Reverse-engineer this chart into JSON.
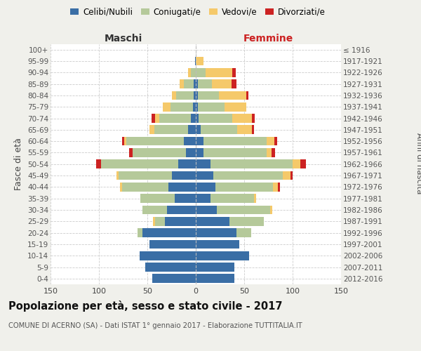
{
  "age_groups": [
    "0-4",
    "5-9",
    "10-14",
    "15-19",
    "20-24",
    "25-29",
    "30-34",
    "35-39",
    "40-44",
    "45-49",
    "50-54",
    "55-59",
    "60-64",
    "65-69",
    "70-74",
    "75-79",
    "80-84",
    "85-89",
    "90-94",
    "95-99",
    "100+"
  ],
  "birth_years": [
    "2012-2016",
    "2007-2011",
    "2002-2006",
    "1997-2001",
    "1992-1996",
    "1987-1991",
    "1982-1986",
    "1977-1981",
    "1972-1976",
    "1967-1971",
    "1962-1966",
    "1957-1961",
    "1952-1956",
    "1947-1951",
    "1942-1946",
    "1937-1941",
    "1932-1936",
    "1927-1931",
    "1922-1926",
    "1917-1921",
    "≤ 1916"
  ],
  "maschi": {
    "celibi": [
      45,
      52,
      58,
      48,
      55,
      32,
      30,
      22,
      28,
      25,
      18,
      10,
      12,
      8,
      5,
      3,
      2,
      2,
      0,
      1,
      0
    ],
    "coniugati": [
      0,
      0,
      0,
      0,
      5,
      10,
      25,
      35,
      48,
      55,
      80,
      55,
      60,
      35,
      33,
      23,
      18,
      10,
      5,
      0,
      0
    ],
    "vedovi": [
      0,
      0,
      0,
      0,
      0,
      2,
      0,
      0,
      2,
      2,
      0,
      0,
      2,
      5,
      4,
      8,
      5,
      5,
      3,
      0,
      0
    ],
    "divorziati": [
      0,
      0,
      0,
      0,
      0,
      0,
      0,
      0,
      0,
      0,
      5,
      4,
      2,
      0,
      4,
      0,
      0,
      0,
      0,
      0,
      0
    ]
  },
  "femmine": {
    "nubili": [
      40,
      40,
      55,
      45,
      42,
      35,
      22,
      15,
      20,
      18,
      15,
      8,
      8,
      5,
      3,
      2,
      2,
      2,
      0,
      0,
      0
    ],
    "coniugate": [
      0,
      0,
      0,
      0,
      15,
      35,
      55,
      45,
      60,
      72,
      85,
      65,
      65,
      38,
      35,
      28,
      22,
      15,
      10,
      0,
      0
    ],
    "vedove": [
      0,
      0,
      0,
      0,
      0,
      0,
      2,
      2,
      5,
      8,
      8,
      5,
      8,
      15,
      20,
      22,
      28,
      20,
      28,
      8,
      0
    ],
    "divorziate": [
      0,
      0,
      0,
      0,
      0,
      0,
      0,
      0,
      2,
      2,
      6,
      4,
      3,
      2,
      3,
      0,
      2,
      5,
      3,
      0,
      0
    ]
  },
  "colors": {
    "celibi": "#3a6ea5",
    "coniugati": "#b5c99a",
    "vedovi": "#f5c96a",
    "divorziati": "#cc2222"
  },
  "xlim": 150,
  "title": "Popolazione per età, sesso e stato civile - 2017",
  "subtitle": "COMUNE DI ACERNO (SA) - Dati ISTAT 1° gennaio 2017 - Elaborazione TUTTITALIA.IT",
  "xlabel_left": "Maschi",
  "xlabel_right": "Femmine",
  "ylabel_left": "Fasce di età",
  "ylabel_right": "Anni di nascita",
  "bg_color": "#f0f0eb",
  "plot_bg": "#ffffff"
}
